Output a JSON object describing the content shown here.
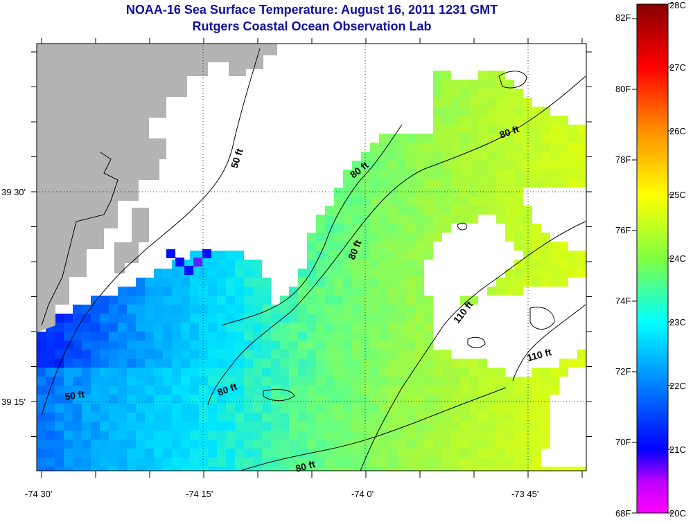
{
  "title": "NOAA-16 Sea Surface Temperature:  August 16, 2011 1231 GMT",
  "subtitle": "Rutgers Coastal Ocean Observation Lab",
  "map": {
    "lat_labels": [
      "39 30'",
      "39 15'"
    ],
    "lon_labels": [
      "-74 30'",
      "-74 15'",
      "-74 0'",
      "-73 45'"
    ],
    "contour_labels": [
      "50 ft",
      "50 ft",
      "80 ft",
      "80 ft",
      "80 ft",
      "80 ft",
      "80 ft",
      "110 ft",
      "110 ft"
    ]
  },
  "colorbar": {
    "fahrenheit_ticks": [
      "82F",
      "80F",
      "78F",
      "76F",
      "74F",
      "72F",
      "70F",
      "68F"
    ],
    "celsius_ticks": [
      "28C",
      "27C",
      "26C",
      "25C",
      "24C",
      "23C",
      "22C",
      "21C",
      "20C"
    ],
    "colors": {
      "land": "#b4b4b4",
      "cold": "#0000ff",
      "mid": "#00ffff",
      "warm": "#ffff00",
      "hot": "#ff0000",
      "max": "#880000",
      "min": "#ff00ff"
    }
  }
}
